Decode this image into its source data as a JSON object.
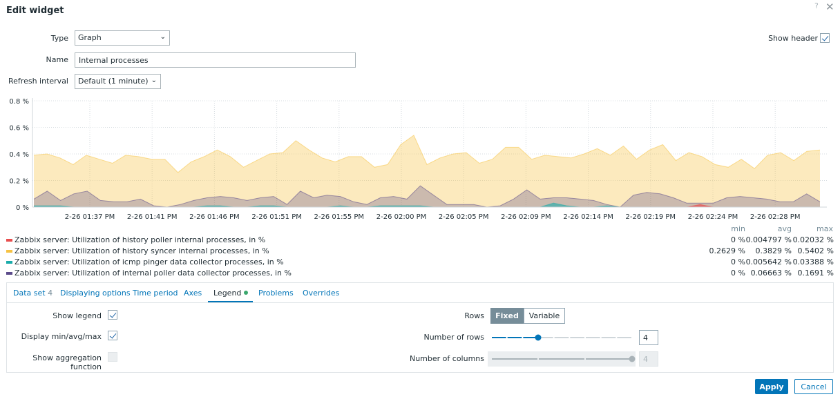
{
  "dialog": {
    "title": "Edit widget",
    "help": "?",
    "close": "✕"
  },
  "form": {
    "type_label": "Type",
    "type_value": "Graph",
    "name_label": "Name",
    "name_value": "Internal processes",
    "refresh_label": "Refresh interval",
    "refresh_value": "Default (1 minute)",
    "show_header_label": "Show header",
    "show_header_checked": true
  },
  "chart_data": {
    "type": "area",
    "y_ticks": [
      "0.8 %",
      "0.6 %",
      "0.4 %",
      "0.2 %",
      "0 %"
    ],
    "ylim": [
      0,
      0.8
    ],
    "x_ticks": [
      "2-26 01:37 PM",
      "2-26 01:41 PM",
      "2-26 01:46 PM",
      "2-26 01:51 PM",
      "2-26 01:55 PM",
      "2-26 02:00 PM",
      "2-26 02:05 PM",
      "2-26 02:09 PM",
      "2-26 02:14 PM",
      "2-26 02:19 PM",
      "2-26 02:24 PM",
      "2-26 02:28 PM"
    ],
    "series": [
      {
        "name": "Zabbix server: Utilization of history syncer internal processes, in %",
        "color": "#f6c244",
        "values": [
          0.39,
          0.4,
          0.37,
          0.32,
          0.39,
          0.36,
          0.33,
          0.39,
          0.38,
          0.36,
          0.36,
          0.26,
          0.34,
          0.38,
          0.43,
          0.38,
          0.3,
          0.35,
          0.4,
          0.41,
          0.5,
          0.43,
          0.37,
          0.34,
          0.38,
          0.38,
          0.3,
          0.32,
          0.47,
          0.54,
          0.32,
          0.37,
          0.4,
          0.41,
          0.33,
          0.36,
          0.45,
          0.45,
          0.36,
          0.39,
          0.38,
          0.37,
          0.4,
          0.44,
          0.39,
          0.46,
          0.36,
          0.43,
          0.47,
          0.35,
          0.41,
          0.38,
          0.32,
          0.3,
          0.36,
          0.29,
          0.39,
          0.41,
          0.35,
          0.42,
          0.43
        ]
      },
      {
        "name": "Zabbix server: Utilization of internal poller data collector processes, in %",
        "color": "#5b4b8a",
        "values": [
          0.06,
          0.12,
          0.05,
          0.1,
          0.12,
          0.05,
          0.04,
          0.04,
          0.06,
          0.01,
          0.0,
          0.02,
          0.05,
          0.07,
          0.08,
          0.07,
          0.05,
          0.07,
          0.08,
          0.02,
          0.12,
          0.07,
          0.09,
          0.08,
          0.04,
          0.02,
          0.07,
          0.08,
          0.06,
          0.16,
          0.09,
          0.02,
          0.02,
          0.02,
          0.0,
          0.01,
          0.06,
          0.13,
          0.06,
          0.07,
          0.07,
          0.06,
          0.05,
          0.02,
          0.0,
          0.09,
          0.11,
          0.1,
          0.07,
          0.03,
          0.03,
          0.03,
          0.07,
          0.08,
          0.07,
          0.06,
          0.04,
          0.04,
          0.1,
          0.04
        ]
      },
      {
        "name": "Zabbix server: Utilization of icmp pinger data collector processes, in %",
        "color": "#1aabaa",
        "values": [
          0.01,
          0.01,
          0.01,
          0.0,
          0.0,
          0.0,
          0.0,
          0.0,
          0.0,
          0.0,
          0.0,
          0.0,
          0.0,
          0.01,
          0.01,
          0.0,
          0.0,
          0.01,
          0.01,
          0.0,
          0.0,
          0.0,
          0.0,
          0.01,
          0.0,
          0.0,
          0.01,
          0.01,
          0.01,
          0.01,
          0.0,
          0.0,
          0.0,
          0.0,
          0.0,
          0.0,
          0.0,
          0.0,
          0.0,
          0.03,
          0.01,
          0.0,
          0.0,
          0.01,
          0.0,
          0.0,
          0.0,
          0.0,
          0.0,
          0.0,
          0.0,
          0.0,
          0.0,
          0.0,
          0.0,
          0.0,
          0.0,
          0.0,
          0.0,
          0.0
        ]
      },
      {
        "name": "Zabbix server: Utilization of history poller internal processes, in %",
        "color": "#e84e4e",
        "values": [
          0.0,
          0.0,
          0.0,
          0.0,
          0.0,
          0.0,
          0.0,
          0.0,
          0.0,
          0.0,
          0.0,
          0.0,
          0.0,
          0.0,
          0.0,
          0.0,
          0.0,
          0.0,
          0.0,
          0.0,
          0.0,
          0.0,
          0.0,
          0.0,
          0.0,
          0.0,
          0.0,
          0.0,
          0.0,
          0.0,
          0.0,
          0.0,
          0.0,
          0.0,
          0.0,
          0.0,
          0.0,
          0.0,
          0.0,
          0.0,
          0.0,
          0.0,
          0.0,
          0.0,
          0.0,
          0.0,
          0.0,
          0.0,
          0.0,
          0.0,
          0.02,
          0.0,
          0.0,
          0.0,
          0.0,
          0.0,
          0.0,
          0.0,
          0.0,
          0.0
        ]
      }
    ],
    "grid": true
  },
  "legend": {
    "header": {
      "min": "min",
      "avg": "avg",
      "max": "max"
    },
    "rows": [
      {
        "name": "Zabbix server: Utilization of history poller internal processes, in %",
        "color": "#e84e4e",
        "min": "0 %",
        "avg": "0.004797 %",
        "max": "0.02032 %"
      },
      {
        "name": "Zabbix server: Utilization of history syncer internal processes, in %",
        "color": "#f6c244",
        "min": "0.2629 %",
        "avg": "0.3829 %",
        "max": "0.5402 %"
      },
      {
        "name": "Zabbix server: Utilization of icmp pinger data collector processes, in %",
        "color": "#1aabaa",
        "min": "0 %",
        "avg": "0.005642 %",
        "max": "0.03388 %"
      },
      {
        "name": "Zabbix server: Utilization of internal poller data collector processes, in %",
        "color": "#5b4b8a",
        "min": "0 %",
        "avg": "0.06663 %",
        "max": "0.1691 %"
      }
    ]
  },
  "tabs": {
    "data_set": "Data set",
    "data_set_count": "4",
    "displaying_options": "Displaying options",
    "time_period": "Time period",
    "axes": "Axes",
    "legend": "Legend",
    "problems": "Problems",
    "overrides": "Overrides",
    "active": "Legend"
  },
  "legend_tab": {
    "show_legend_label": "Show legend",
    "show_legend_checked": true,
    "display_minmax_label": "Display min/avg/max",
    "display_minmax_checked": true,
    "show_aggregation_label": "Show aggregation function",
    "show_aggregation_checked": false,
    "rows_label": "Rows",
    "rows_fixed": "Fixed",
    "rows_variable": "Variable",
    "rows_selected": "Fixed",
    "number_of_rows_label": "Number of rows",
    "number_of_rows_value": "4",
    "number_of_rows_min": 1,
    "number_of_rows_max": 10,
    "number_of_columns_label": "Number of columns",
    "number_of_columns_value": "4",
    "number_of_columns_min": 1,
    "number_of_columns_max": 4
  },
  "footer": {
    "apply": "Apply",
    "cancel": "Cancel"
  },
  "colors": {
    "accent": "#0275b8",
    "toggle_active": "#768d99"
  }
}
